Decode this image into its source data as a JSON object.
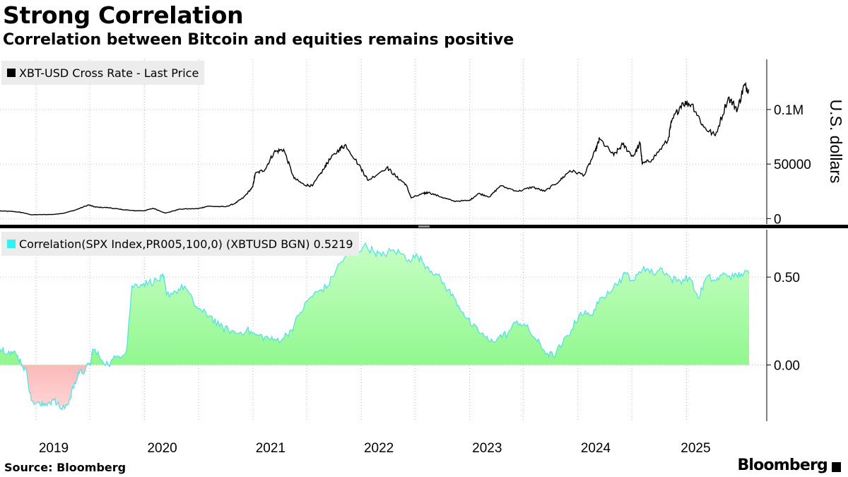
{
  "title": "Strong Correlation",
  "subtitle": "Correlation between Bitcoin and equities remains positive",
  "source": "Source: Bloomberg",
  "brand": "Bloomberg",
  "colors": {
    "price_line": "#000000",
    "corr_line": "#4ee0ee",
    "corr_positive_top": "#c8ffc6",
    "corr_positive_bottom": "#7df57a",
    "corr_negative_top": "#f06d6d",
    "corr_negative_bottom": "#ffd6d6",
    "grid": "#bdbdbd",
    "legend_bg": "#ececec",
    "price_swatch": "#000000",
    "corr_swatch": "#2ef1f1"
  },
  "chart_data": [
    {
      "type": "line",
      "legend": "XBT-USD Cross Rate - Last Price",
      "ylabel": "U.S. dollars",
      "ylim": [
        -5000,
        146000
      ],
      "yticks": [
        0,
        50000,
        100000
      ],
      "ytick_labels": [
        "0",
        "50000",
        "0.1M"
      ],
      "grid": true,
      "legend_position": "top-left",
      "series": [
        {
          "x": [
            "2018-09-01",
            "2018-10-15",
            "2018-11-15",
            "2018-12-15",
            "2019-01-20",
            "2019-03-01",
            "2019-04-05",
            "2019-05-15",
            "2019-06-26",
            "2019-07-20",
            "2019-09-01",
            "2019-10-10",
            "2019-11-25",
            "2019-12-31",
            "2020-01-31",
            "2020-03-12",
            "2020-04-30",
            "2020-06-30",
            "2020-07-31",
            "2020-09-30",
            "2020-10-31",
            "2020-11-30",
            "2020-12-31",
            "2021-01-08",
            "2021-02-10",
            "2021-03-13",
            "2021-04-14",
            "2021-05-19",
            "2021-06-22",
            "2021-07-20",
            "2021-08-31",
            "2021-09-07",
            "2021-10-20",
            "2021-11-10",
            "2021-12-31",
            "2022-01-24",
            "2022-03-28",
            "2022-04-30",
            "2022-05-31",
            "2022-06-18",
            "2022-07-31",
            "2022-08-15",
            "2022-09-30",
            "2022-11-09",
            "2022-12-31",
            "2023-01-31",
            "2023-03-10",
            "2023-04-14",
            "2023-06-15",
            "2023-07-31",
            "2023-09-11",
            "2023-10-31",
            "2023-12-05",
            "2024-01-23",
            "2024-02-29",
            "2024-03-14",
            "2024-05-01",
            "2024-05-31",
            "2024-07-05",
            "2024-07-29",
            "2024-08-05",
            "2024-09-06",
            "2024-10-31",
            "2024-11-12",
            "2024-12-17",
            "2025-01-20",
            "2025-02-28",
            "2025-04-08",
            "2025-05-22",
            "2025-06-22",
            "2025-07-14",
            "2025-07-31"
          ],
          "y": [
            7000,
            6500,
            5500,
            3500,
            3600,
            3800,
            5000,
            8000,
            12500,
            10500,
            10000,
            8500,
            7200,
            7200,
            9400,
            5000,
            8700,
            9100,
            11300,
            10800,
            13700,
            19300,
            29000,
            41000,
            45000,
            61000,
            63500,
            37000,
            31000,
            30000,
            47000,
            51000,
            64000,
            67500,
            46000,
            35000,
            47000,
            38000,
            31500,
            19000,
            23000,
            24000,
            19500,
            16000,
            16500,
            23000,
            20000,
            30000,
            25000,
            29000,
            25000,
            34500,
            44000,
            40000,
            62000,
            73000,
            58000,
            68000,
            57000,
            69000,
            50000,
            54000,
            72000,
            89000,
            106000,
            105000,
            84000,
            76000,
            111000,
            100000,
            122000,
            118000
          ]
        }
      ]
    },
    {
      "type": "area",
      "legend": "Correlation(SPX Index,PR005,100,0) (XBTUSD BGN) 0.5219",
      "last_value": 0.5219,
      "ylim": [
        -0.32,
        0.77
      ],
      "yticks": [
        0.0,
        0.5
      ],
      "ytick_labels": [
        "0.00",
        "0.50"
      ],
      "grid": true,
      "legend_position": "top-left",
      "series": [
        {
          "x": [
            "2018-09-01",
            "2018-10-01",
            "2018-10-25",
            "2018-11-10",
            "2018-12-01",
            "2018-12-15",
            "2019-01-15",
            "2019-02-01",
            "2019-03-01",
            "2019-03-25",
            "2019-04-20",
            "2019-05-10",
            "2019-05-25",
            "2019-06-15",
            "2019-07-05",
            "2019-07-10",
            "2019-08-01",
            "2019-09-01",
            "2019-10-01",
            "2019-11-01",
            "2019-11-20",
            "2019-12-20",
            "2020-01-15",
            "2020-02-15",
            "2020-03-05",
            "2020-03-15",
            "2020-04-15",
            "2020-05-15",
            "2020-06-15",
            "2020-07-15",
            "2020-08-10",
            "2020-09-10",
            "2020-10-10",
            "2020-11-10",
            "2020-12-10",
            "2021-01-10",
            "2021-02-10",
            "2021-03-10",
            "2021-04-10",
            "2021-05-10",
            "2021-06-10",
            "2021-07-10",
            "2021-08-10",
            "2021-09-10",
            "2021-10-10",
            "2021-11-10",
            "2021-12-10",
            "2022-01-10",
            "2022-02-10",
            "2022-03-10",
            "2022-04-10",
            "2022-05-10",
            "2022-06-10",
            "2022-07-10",
            "2022-08-10",
            "2022-09-10",
            "2022-10-10",
            "2022-11-10",
            "2022-12-10",
            "2023-01-10",
            "2023-02-10",
            "2023-03-10",
            "2023-04-10",
            "2023-05-10",
            "2023-06-10",
            "2023-07-10",
            "2023-08-10",
            "2023-09-10",
            "2023-10-10",
            "2023-11-10",
            "2023-12-10",
            "2024-01-10",
            "2024-02-10",
            "2024-03-10",
            "2024-04-10",
            "2024-05-10",
            "2024-06-10",
            "2024-07-10",
            "2024-08-10",
            "2024-09-10",
            "2024-10-10",
            "2024-11-10",
            "2024-12-10",
            "2025-01-10",
            "2025-02-10",
            "2025-03-10",
            "2025-04-10",
            "2025-05-10",
            "2025-06-10",
            "2025-07-05",
            "2025-07-31"
          ],
          "y": [
            0.09,
            0.08,
            0.06,
            0.02,
            -0.05,
            -0.2,
            -0.23,
            -0.22,
            -0.2,
            -0.25,
            -0.22,
            -0.1,
            -0.05,
            -0.03,
            0.02,
            0.09,
            0.05,
            0.0,
            0.05,
            0.08,
            0.45,
            0.46,
            0.47,
            0.48,
            0.5,
            0.4,
            0.42,
            0.45,
            0.35,
            0.3,
            0.28,
            0.22,
            0.2,
            0.18,
            0.2,
            0.17,
            0.16,
            0.14,
            0.15,
            0.2,
            0.3,
            0.38,
            0.42,
            0.45,
            0.55,
            0.62,
            0.63,
            0.68,
            0.65,
            0.62,
            0.65,
            0.64,
            0.6,
            0.62,
            0.56,
            0.52,
            0.45,
            0.38,
            0.3,
            0.22,
            0.18,
            0.13,
            0.16,
            0.18,
            0.25,
            0.22,
            0.15,
            0.08,
            0.05,
            0.12,
            0.2,
            0.3,
            0.28,
            0.35,
            0.42,
            0.46,
            0.52,
            0.48,
            0.56,
            0.52,
            0.55,
            0.49,
            0.48,
            0.5,
            0.38,
            0.5,
            0.48,
            0.52,
            0.5,
            0.52,
            0.5219
          ]
        }
      ]
    }
  ],
  "x_axis": {
    "start": "2018-09-01",
    "end": "2025-07-31",
    "tick_dates": [
      "2019-01-01",
      "2019-07-01",
      "2020-01-01",
      "2020-07-01",
      "2021-01-01",
      "2021-07-01",
      "2022-01-01",
      "2022-07-01",
      "2023-01-01",
      "2023-07-01",
      "2024-01-01",
      "2024-07-01",
      "2025-01-01"
    ],
    "year_labels": [
      "2019",
      "2020",
      "2021",
      "2022",
      "2023",
      "2024",
      "2025"
    ],
    "year_label_dates": [
      "2019-03-01",
      "2020-03-01",
      "2021-03-01",
      "2022-03-01",
      "2023-03-01",
      "2024-03-01",
      "2025-02-01"
    ]
  }
}
